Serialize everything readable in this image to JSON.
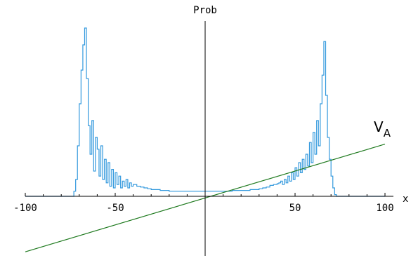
{
  "chart_data": {
    "type": "line",
    "title": "",
    "xlabel": "x",
    "ylabel": "Prob",
    "xlim": [
      -100,
      100
    ],
    "ylim": [
      -0.35,
      1.0
    ],
    "xticks": [
      -100,
      -50,
      50,
      100
    ],
    "xtick_labels": [
      "-100",
      "-50",
      "50",
      "100"
    ],
    "colors": {
      "histogram": "#3399dd",
      "potential": "#1f7a1f",
      "axes": "#000000"
    },
    "series": [
      {
        "name": "",
        "kind": "step",
        "x": [
          -100,
          -75,
          -73,
          -72,
          -71,
          -70,
          -69,
          -68,
          -67,
          -66,
          -65,
          -64,
          -63,
          -62,
          -61,
          -60,
          -59,
          -58,
          -57,
          -56,
          -55,
          -54,
          -53,
          -52,
          -51,
          -50,
          -49,
          -48,
          -47,
          -46,
          -45,
          -44,
          -43,
          -42,
          -41,
          -40,
          -38,
          -36,
          -34,
          -32,
          -30,
          -25,
          -20,
          -15,
          -10,
          -5,
          0,
          5,
          10,
          15,
          20,
          25,
          30,
          32,
          34,
          36,
          38,
          40,
          41,
          42,
          43,
          44,
          45,
          46,
          47,
          48,
          49,
          50,
          51,
          52,
          53,
          54,
          55,
          56,
          57,
          58,
          59,
          60,
          61,
          62,
          63,
          64,
          65,
          66,
          67,
          68,
          69,
          70,
          71,
          72,
          73,
          75,
          100
        ],
        "y": [
          0,
          0,
          0.03,
          0.1,
          0.3,
          0.55,
          0.75,
          0.9,
          1.0,
          0.7,
          0.42,
          0.25,
          0.45,
          0.15,
          0.35,
          0.28,
          0.12,
          0.3,
          0.1,
          0.22,
          0.08,
          0.2,
          0.06,
          0.16,
          0.05,
          0.14,
          0.07,
          0.12,
          0.05,
          0.09,
          0.06,
          0.1,
          0.05,
          0.08,
          0.06,
          0.07,
          0.06,
          0.055,
          0.05,
          0.045,
          0.04,
          0.035,
          0.03,
          0.03,
          0.03,
          0.03,
          0.03,
          0.03,
          0.03,
          0.035,
          0.035,
          0.04,
          0.045,
          0.05,
          0.055,
          0.065,
          0.07,
          0.075,
          0.08,
          0.09,
          0.07,
          0.1,
          0.08,
          0.12,
          0.09,
          0.14,
          0.1,
          0.17,
          0.12,
          0.2,
          0.14,
          0.22,
          0.16,
          0.25,
          0.18,
          0.32,
          0.2,
          0.38,
          0.25,
          0.45,
          0.3,
          0.55,
          0.72,
          0.92,
          0.6,
          0.35,
          0.22,
          0.12,
          0.05,
          0.01,
          0,
          0,
          0
        ]
      },
      {
        "name": "V",
        "name_sub": "A",
        "kind": "line",
        "x": [
          -100,
          100
        ],
        "y": [
          -0.33,
          0.31
        ]
      }
    ],
    "grid": false,
    "legend": "none"
  }
}
